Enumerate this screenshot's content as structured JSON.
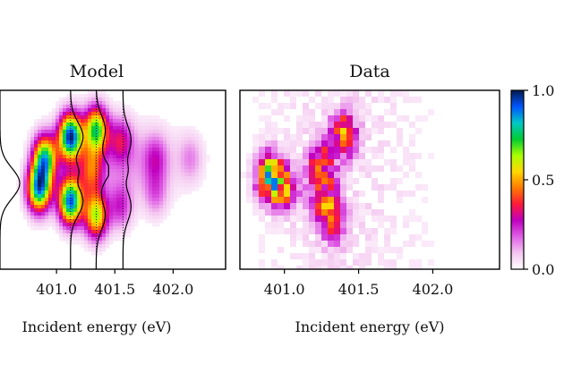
{
  "chart_data": [
    {
      "type": "heatmap",
      "title": "Model",
      "xlabel": "Incident energy (eV)",
      "x_ticks": [
        "401.0",
        "401.5",
        "402.0"
      ],
      "x_tick_values": [
        401.0,
        401.5,
        402.0
      ],
      "xlim": [
        400.5,
        402.45
      ],
      "ylim": [
        0,
        1
      ],
      "peaks": [
        {
          "energy": 400.85,
          "y": 0.45,
          "intensity": 0.85
        },
        {
          "energy": 400.9,
          "y": 0.62,
          "intensity": 0.75
        },
        {
          "energy": 401.12,
          "y": 0.74,
          "intensity": 0.95
        },
        {
          "energy": 401.12,
          "y": 0.38,
          "intensity": 0.9
        },
        {
          "energy": 401.34,
          "y": 0.78,
          "intensity": 0.7
        },
        {
          "energy": 401.34,
          "y": 0.3,
          "intensity": 0.62
        },
        {
          "energy": 401.3,
          "y": 0.55,
          "intensity": 0.35
        },
        {
          "energy": 401.55,
          "y": 0.72,
          "intensity": 0.25
        },
        {
          "energy": 401.55,
          "y": 0.35,
          "intensity": 0.22
        },
        {
          "energy": 401.85,
          "y": 0.62,
          "intensity": 0.18
        },
        {
          "energy": 401.85,
          "y": 0.42,
          "intensity": 0.15
        },
        {
          "energy": 402.15,
          "y": 0.62,
          "intensity": 0.12
        }
      ],
      "profile_lines_energy": [
        401.12,
        401.34,
        401.57
      ]
    },
    {
      "type": "heatmap",
      "title": "Data",
      "xlabel": "Incident energy (eV)",
      "x_ticks": [
        "401.0",
        "401.5",
        "402.0"
      ],
      "x_tick_values": [
        401.0,
        401.5,
        402.0
      ],
      "xlim": [
        400.7,
        402.45
      ],
      "ylim": [
        0,
        1
      ],
      "blobs": [
        {
          "energy": 400.9,
          "y": 0.52,
          "intensity": 0.9
        },
        {
          "energy": 401.0,
          "y": 0.45,
          "intensity": 0.5
        },
        {
          "energy": 401.25,
          "y": 0.58,
          "intensity": 0.55
        },
        {
          "energy": 401.4,
          "y": 0.75,
          "intensity": 0.6
        },
        {
          "energy": 401.32,
          "y": 0.28,
          "intensity": 0.5
        },
        {
          "energy": 401.25,
          "y": 0.4,
          "intensity": 0.35
        }
      ]
    }
  ],
  "colorbar": {
    "ticks": [
      "1.0",
      "0.5",
      "0.0"
    ],
    "tick_values": [
      1.0,
      0.5,
      0.0
    ],
    "range": [
      0,
      1
    ],
    "colors": [
      "#ffffff",
      "#f4c6f0",
      "#e060e6",
      "#c000c0",
      "#ff1a3a",
      "#ff7a00",
      "#ffd700",
      "#a8ff00",
      "#00cc33",
      "#00c8c8",
      "#0055ff",
      "#001a4d"
    ]
  }
}
